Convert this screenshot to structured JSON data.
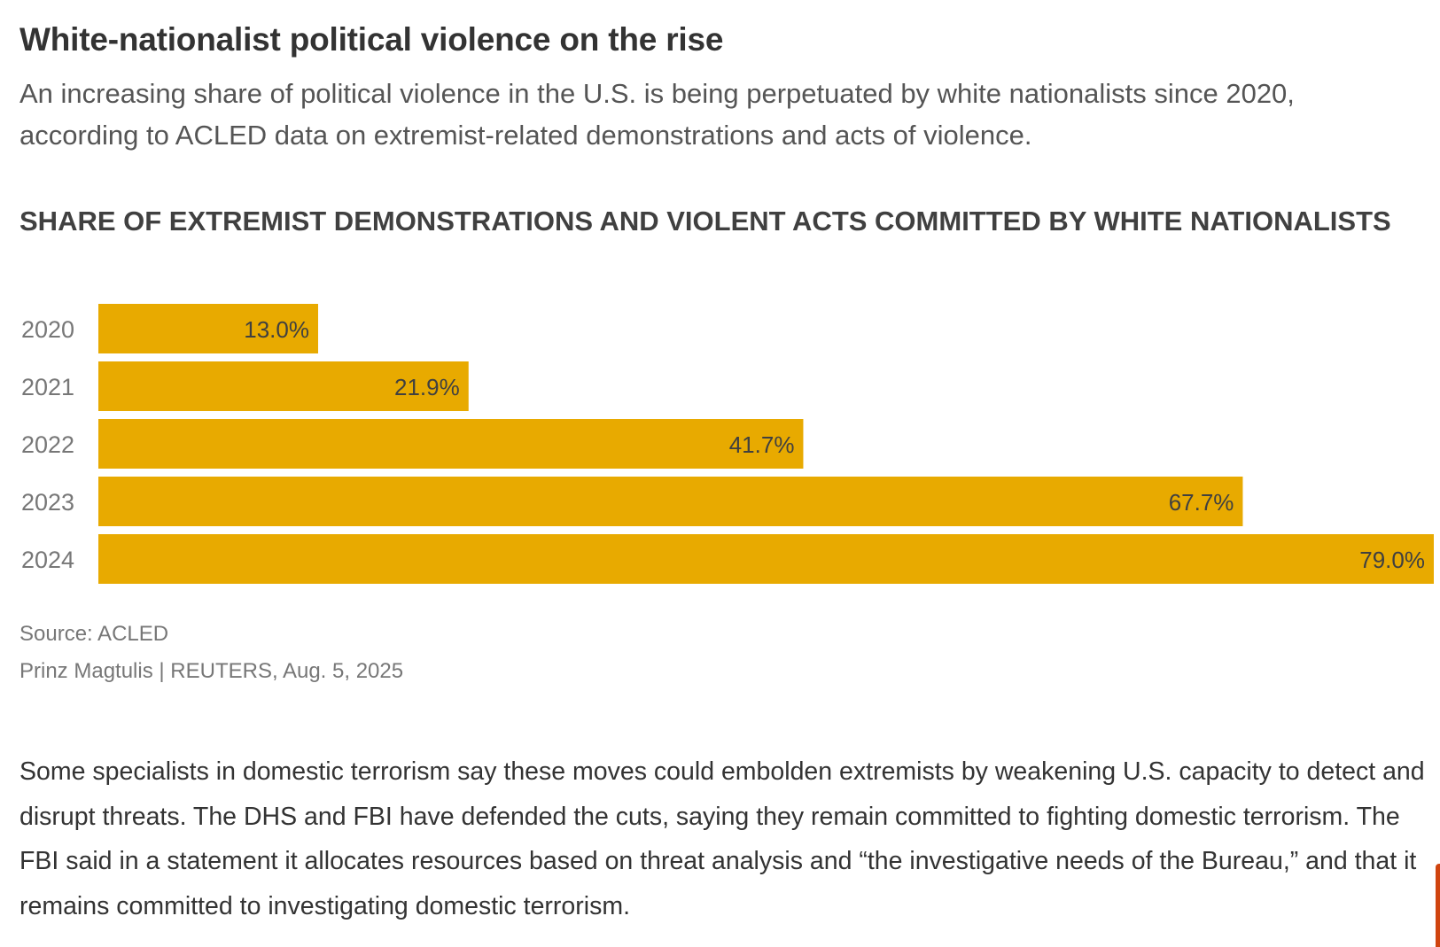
{
  "header": {
    "headline": "White-nationalist political violence on the rise",
    "subhead": "An increasing share of political violence in the U.S. is being perpetuated by white nationalists since 2020, according to ACLED data on extremist-related demonstrations and acts of violence."
  },
  "chart_data": {
    "type": "bar",
    "orientation": "horizontal",
    "title": "SHARE OF EXTREMIST DEMONSTRATIONS AND VIOLENT ACTS COMMITTED BY WHITE NATIONALISTS",
    "categories": [
      "2020",
      "2021",
      "2022",
      "2023",
      "2024"
    ],
    "values": [
      13.0,
      21.9,
      41.7,
      67.7,
      79.0
    ],
    "value_labels": [
      "13.0%",
      "21.9%",
      "41.7%",
      "67.7%",
      "79.0%"
    ],
    "xlim": [
      0,
      79.0
    ],
    "xlabel": "",
    "ylabel": "",
    "bar_color": "#E8AA00",
    "grid": false,
    "legend": "none"
  },
  "footer": {
    "source": "Source: ACLED",
    "credit": "Prinz Magtulis | REUTERS, Aug. 5, 2025"
  },
  "article": {
    "paragraph": "Some specialists in domestic terrorism say these moves could embolden extremists by weakening U.S. capacity to detect and disrupt threats. The DHS and FBI have defended the cuts, saying they remain committed to fighting domestic terrorism. The FBI said in a statement it allocates resources based on threat analysis and “the investigative needs of the Bureau,” and that it remains committed to investigating domestic terrorism."
  },
  "colors": {
    "accent_tab": "#D0440F"
  }
}
